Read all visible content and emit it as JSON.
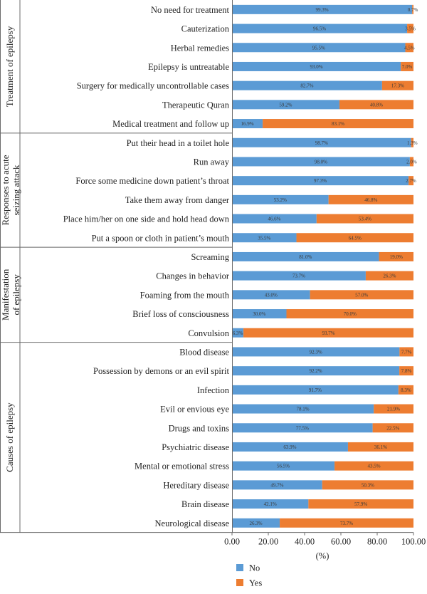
{
  "chart_data": {
    "type": "bar",
    "orientation": "horizontal",
    "stacked": true,
    "xlim": [
      0,
      100
    ],
    "x_ticks": [
      "0.00",
      "20.00",
      "40.00",
      "60.00",
      "80.00",
      "100.00"
    ],
    "xlabel": "(%)",
    "legend_position": "bottom-center",
    "series": [
      {
        "name": "No",
        "color": "#5b9bd5"
      },
      {
        "name": "Yes",
        "color": "#ed7d31"
      }
    ],
    "groups": [
      {
        "name": "Treatment of epilepsy",
        "items": [
          {
            "label": "No need for treatment",
            "no": 99.3,
            "yes": 0.7,
            "no_label": "99.3%",
            "yes_label": "0.7%"
          },
          {
            "label": "Cauterization",
            "no": 96.5,
            "yes": 3.5,
            "no_label": "96.5%",
            "yes_label": "3.5%"
          },
          {
            "label": "Herbal remedies",
            "no": 95.5,
            "yes": 4.5,
            "no_label": "95.5%",
            "yes_label": "4.5%"
          },
          {
            "label": "Epilepsy is untreatable",
            "no": 93.0,
            "yes": 7.0,
            "no_label": "93.0%",
            "yes_label": "7.0%"
          },
          {
            "label": "Surgery for medically uncontrollable cases",
            "no": 82.7,
            "yes": 17.3,
            "no_label": "82.7%",
            "yes_label": "17.3%"
          },
          {
            "label": "Therapeutic Quran",
            "no": 59.2,
            "yes": 40.8,
            "no_label": "59.2%",
            "yes_label": "40.8%"
          },
          {
            "label": "Medical treatment and follow up",
            "no": 16.9,
            "yes": 83.1,
            "no_label": "16.9%",
            "yes_label": "83.1%"
          }
        ]
      },
      {
        "name": "Responses to acute seizing attack",
        "items": [
          {
            "label": "Put their head in a toilet hole",
            "no": 98.7,
            "yes": 1.3,
            "no_label": "98.7%",
            "yes_label": "1.3%"
          },
          {
            "label": "Run away",
            "no": 98.0,
            "yes": 2.0,
            "no_label": "98.0%",
            "yes_label": "2.0%"
          },
          {
            "label": "Force some medicine down patient’s throat",
            "no": 97.3,
            "yes": 2.7,
            "no_label": "97.3%",
            "yes_label": "2.7%"
          },
          {
            "label": "Take them away from danger",
            "no": 53.2,
            "yes": 46.8,
            "no_label": "53.2%",
            "yes_label": "46.8%"
          },
          {
            "label": "Place him/her on one side and hold head down",
            "no": 46.6,
            "yes": 53.4,
            "no_label": "46.6%",
            "yes_label": "53.4%"
          },
          {
            "label": "Put a spoon or cloth in patient’s mouth",
            "no": 35.5,
            "yes": 64.5,
            "no_label": "35.5%",
            "yes_label": "64.5%"
          }
        ]
      },
      {
        "name": "Manifestation of epilepsy",
        "items": [
          {
            "label": "Screaming",
            "no": 81.0,
            "yes": 19.0,
            "no_label": "81.0%",
            "yes_label": "19.0%"
          },
          {
            "label": "Changes in behavior",
            "no": 73.7,
            "yes": 26.3,
            "no_label": "73.7%",
            "yes_label": "26.3%"
          },
          {
            "label": "Foaming from the mouth",
            "no": 43.0,
            "yes": 57.0,
            "no_label": "43.0%",
            "yes_label": "57.0%"
          },
          {
            "label": "Brief loss of consciousness",
            "no": 30.0,
            "yes": 70.0,
            "no_label": "30.0%",
            "yes_label": "70.0%"
          },
          {
            "label": "Convulsion",
            "no": 6.3,
            "yes": 93.7,
            "no_label": "6.3%",
            "yes_label": "93.7%"
          }
        ]
      },
      {
        "name": "Causes of epilepsy",
        "items": [
          {
            "label": "Blood disease",
            "no": 92.3,
            "yes": 7.7,
            "no_label": "92.3%",
            "yes_label": "7.7%"
          },
          {
            "label": "Possession by demons or an evil spirit",
            "no": 92.2,
            "yes": 7.8,
            "no_label": "92.2%",
            "yes_label": "7.8%"
          },
          {
            "label": "Infection",
            "no": 91.7,
            "yes": 8.3,
            "no_label": "91.7%",
            "yes_label": "8.3%"
          },
          {
            "label": "Evil or envious eye",
            "no": 78.1,
            "yes": 21.9,
            "no_label": "78.1%",
            "yes_label": "21.9%"
          },
          {
            "label": "Drugs and toxins",
            "no": 77.5,
            "yes": 22.5,
            "no_label": "77.5%",
            "yes_label": "22.5%"
          },
          {
            "label": "Psychiatric disease",
            "no": 63.9,
            "yes": 36.1,
            "no_label": "63.9%",
            "yes_label": "36.1%"
          },
          {
            "label": "Mental or emotional stress",
            "no": 56.5,
            "yes": 43.5,
            "no_label": "56.5%",
            "yes_label": "43.5%"
          },
          {
            "label": "Hereditary disease",
            "no": 49.7,
            "yes": 50.3,
            "no_label": "49.7%",
            "yes_label": "50.3%"
          },
          {
            "label": "Brain disease",
            "no": 42.1,
            "yes": 57.9,
            "no_label": "42.1%",
            "yes_label": "57.9%"
          },
          {
            "label": "Neurological disease",
            "no": 26.3,
            "yes": 73.7,
            "no_label": "26.3%",
            "yes_label": "73.7%"
          }
        ]
      }
    ]
  }
}
